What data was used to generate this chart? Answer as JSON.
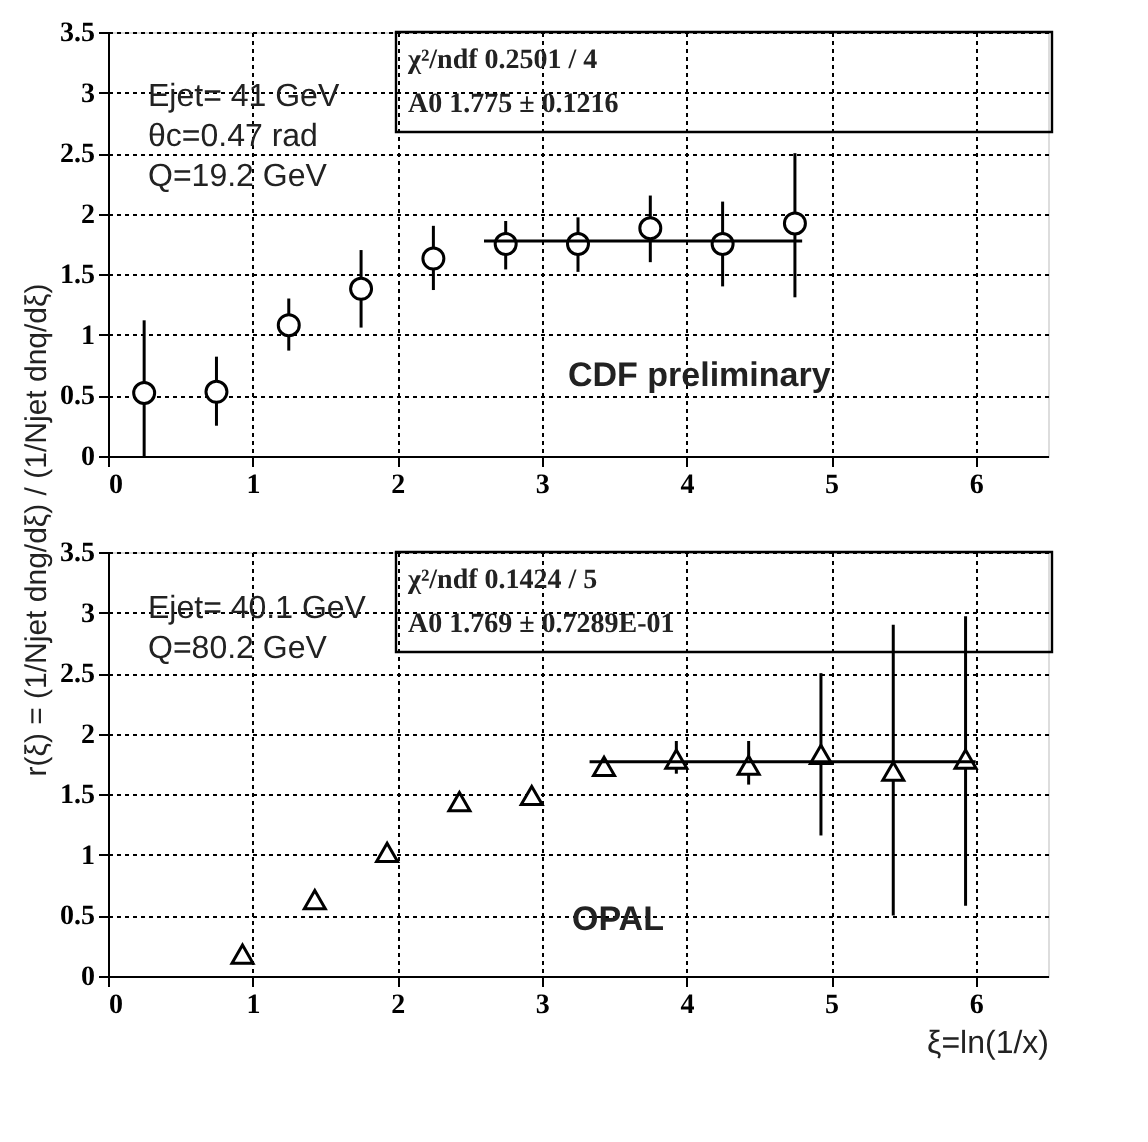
{
  "chart_data": [
    {
      "type": "scatter",
      "x": [
        0.25,
        0.75,
        1.25,
        1.75,
        2.25,
        2.75,
        3.25,
        3.75,
        4.25,
        4.75
      ],
      "series": [
        {
          "type": "scatter",
          "marker": "circle",
          "color": "#000000",
          "values": [
            0.52,
            0.53,
            1.08,
            1.38,
            1.63,
            1.75,
            1.75,
            1.88,
            1.75,
            1.92
          ],
          "errors": [
            [
              0.0,
              1.12
            ],
            [
              0.25,
              0.82
            ],
            [
              0.87,
              1.3
            ],
            [
              1.06,
              1.7
            ],
            [
              1.37,
              1.9
            ],
            [
              1.54,
              1.94
            ],
            [
              1.52,
              1.97
            ],
            [
              1.6,
              2.15
            ],
            [
              1.4,
              2.1
            ],
            [
              1.31,
              2.5
            ]
          ]
        },
        {
          "type": "line",
          "x": [
            2.6,
            4.8
          ],
          "values": [
            1.775,
            1.775
          ],
          "color": "#000000",
          "line_style": "solid"
        }
      ],
      "ylabel": "r(ξ) = (1/Njet dng/dξ) / (1/Njet dnq/dξ)",
      "annotations": [
        "χ²/ndf      0.2501   /   4",
        "A0                    1.775 ±                 0.1216",
        "Ejet= 41 GeV",
        "θc=0.47 rad",
        "Q=19.2 GeV",
        "CDF preliminary"
      ],
      "xlim": [
        0,
        6.5
      ],
      "xticks": [
        0,
        1,
        2,
        3,
        4,
        5,
        6
      ],
      "ylim": [
        0,
        3.5
      ],
      "yticks": [
        0,
        0.5,
        1,
        1.5,
        2,
        2.5,
        3,
        3.5
      ],
      "grid": true
    },
    {
      "type": "scatter",
      "x": [
        0.93,
        1.43,
        1.93,
        2.43,
        2.93,
        3.43,
        3.93,
        4.43,
        4.93,
        5.43,
        5.93
      ],
      "series": [
        {
          "type": "scatter",
          "marker": "triangle",
          "color": "#000000",
          "values": [
            0.18,
            0.63,
            1.02,
            1.44,
            1.49,
            1.73,
            1.79,
            1.74,
            1.83,
            1.69,
            1.79
          ],
          "errors": [
            null,
            null,
            null,
            null,
            null,
            null,
            [
              1.67,
              1.94
            ],
            [
              1.58,
              1.94
            ],
            [
              1.16,
              2.5
            ],
            [
              0.5,
              2.9
            ],
            [
              0.58,
              2.97
            ]
          ]
        },
        {
          "type": "line",
          "x": [
            3.33,
            6.0
          ],
          "values": [
            1.769,
            1.769
          ],
          "color": "#000000",
          "line_style": "solid"
        }
      ],
      "xlabel": "ξ=ln(1/x)",
      "annotations": [
        "χ²/ndf      0.1424   /   5",
        "A0                    1.769 ±         0.7289E-01",
        "Ejet= 40.1 GeV",
        "Q=80.2 GeV",
        "OPAL"
      ],
      "xlim": [
        0,
        6.5
      ],
      "xticks": [
        0,
        1,
        2,
        3,
        4,
        5,
        6
      ],
      "ylim": [
        0,
        3.5
      ],
      "yticks": [
        0,
        0.5,
        1,
        1.5,
        2,
        2.5,
        3,
        3.5
      ],
      "grid": true
    }
  ]
}
